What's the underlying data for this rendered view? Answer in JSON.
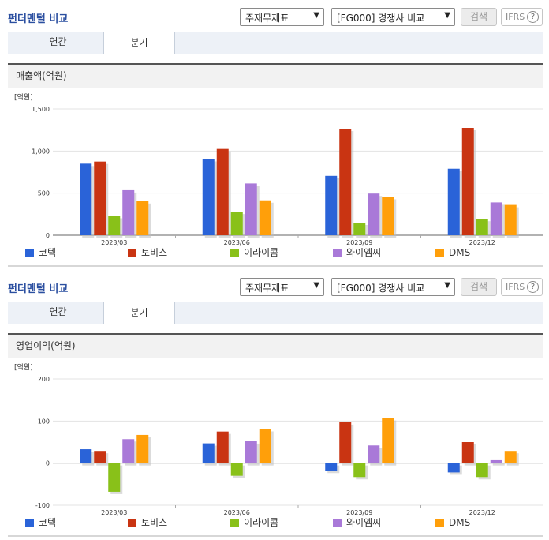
{
  "header": {
    "title": "펀더멘털 비교",
    "select_main": "주재무제표",
    "select_compare": "[FG000] 경쟁사 비교",
    "search_label": "검색",
    "ifrs_label": "IFRS",
    "help_glyph": "?"
  },
  "tabs": [
    {
      "label": "연간"
    },
    {
      "label": "분기",
      "active": true
    }
  ],
  "colors": {
    "코텍": "#2a63d8",
    "토비스": "#c93412",
    "이라이콤": "#89c119",
    "와이엠씨": "#a979d8",
    "DMS": "#ff9f0a"
  },
  "chart_data": [
    {
      "type": "bar",
      "title": "매출액(억원)",
      "unit_label": "[억원]",
      "categories": [
        "2023/03",
        "2023/06",
        "2023/09",
        "2023/12"
      ],
      "ylim": [
        0,
        1500
      ],
      "yticks": [
        0,
        500,
        1000,
        1500
      ],
      "ytick_labels": [
        "0",
        "500",
        "1,000",
        "1,500"
      ],
      "grid": true,
      "legend": "bottom",
      "series": [
        {
          "name": "코텍",
          "color": "#2a63d8",
          "values": [
            850,
            905,
            705,
            790
          ]
        },
        {
          "name": "토비스",
          "color": "#c93412",
          "values": [
            875,
            1025,
            1265,
            1275
          ]
        },
        {
          "name": "이라이콤",
          "color": "#89c119",
          "values": [
            230,
            280,
            150,
            195
          ]
        },
        {
          "name": "와이엠씨",
          "color": "#a979d8",
          "values": [
            535,
            615,
            495,
            390
          ]
        },
        {
          "name": "DMS",
          "color": "#ff9f0a",
          "values": [
            405,
            415,
            455,
            360
          ]
        }
      ]
    },
    {
      "type": "bar",
      "title": "영업이익(억원)",
      "unit_label": "[억원]",
      "categories": [
        "2023/03",
        "2023/06",
        "2023/09",
        "2023/12"
      ],
      "ylim": [
        -100,
        200
      ],
      "yticks": [
        -100,
        0,
        100,
        200
      ],
      "ytick_labels": [
        "-100",
        "0",
        "100",
        "200"
      ],
      "grid": true,
      "legend": "bottom",
      "series": [
        {
          "name": "코텍",
          "color": "#2a63d8",
          "values": [
            33,
            47,
            -18,
            -22
          ]
        },
        {
          "name": "토비스",
          "color": "#c93412",
          "values": [
            29,
            75,
            97,
            50
          ]
        },
        {
          "name": "이라이콤",
          "color": "#89c119",
          "values": [
            -68,
            -30,
            -33,
            -33
          ]
        },
        {
          "name": "와이엠씨",
          "color": "#a979d8",
          "values": [
            57,
            52,
            42,
            7
          ]
        },
        {
          "name": "DMS",
          "color": "#ff9f0a",
          "values": [
            67,
            81,
            107,
            29
          ]
        }
      ]
    }
  ]
}
